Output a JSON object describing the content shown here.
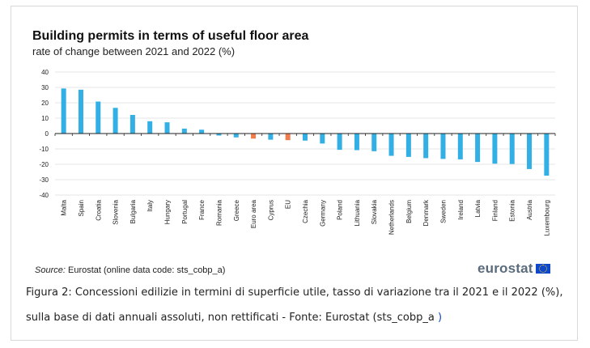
{
  "chart_data": {
    "type": "bar",
    "title": "Building permits in terms of useful floor area",
    "subtitle": "rate of change between 2021 and 2022 (%)",
    "xlabel": "",
    "ylabel": "",
    "ylim": [
      -40,
      40
    ],
    "yticks": [
      40,
      30,
      20,
      10,
      0,
      -10,
      -20,
      -30,
      -40
    ],
    "grid": true,
    "categories": [
      "Malta",
      "Spain",
      "Croatia",
      "Slovenia",
      "Bulgaria",
      "Italy",
      "Hungary",
      "Portugal",
      "France",
      "Romania",
      "Greece",
      "Euro area",
      "Cyprus",
      "EU",
      "Czechia",
      "Germany",
      "Poland",
      "Lithuania",
      "Slovakia",
      "Netherlands",
      "Belgium",
      "Denmark",
      "Sweden",
      "Ireland",
      "Latvia",
      "Finland",
      "Estonia",
      "Austria",
      "Luxembourg"
    ],
    "values": [
      29.3,
      28.5,
      20.8,
      16.7,
      12.1,
      8.0,
      7.3,
      3.2,
      2.5,
      -1.3,
      -2.5,
      -3.3,
      -4.0,
      -4.3,
      -4.6,
      -6.5,
      -10.6,
      -10.8,
      -11.5,
      -14.5,
      -15.2,
      -16.0,
      -16.5,
      -16.8,
      -18.5,
      -19.6,
      -19.8,
      -23.1,
      -27.4
    ],
    "highlight_categories": [
      "Euro area",
      "EU"
    ],
    "colors": {
      "bar": "#32afe5",
      "highlight": "#ef7c4a",
      "grid": "#e6e6e6",
      "axis": "#222222"
    }
  },
  "source": {
    "label": "Source:",
    "text": "Eurostat (online data code: sts_cobp_a)"
  },
  "brand": {
    "text": "eurostat"
  },
  "caption": {
    "line1": "Figura 2: Concessioni edilizie in termini di superficie utile, tasso di variazione tra il 2021 e il 2022 (%),",
    "line2": "sulla base di dati annuali assoluti, non rettificati - Fonte: Eurostat (sts_cobp_a",
    "link_tail": " )"
  }
}
